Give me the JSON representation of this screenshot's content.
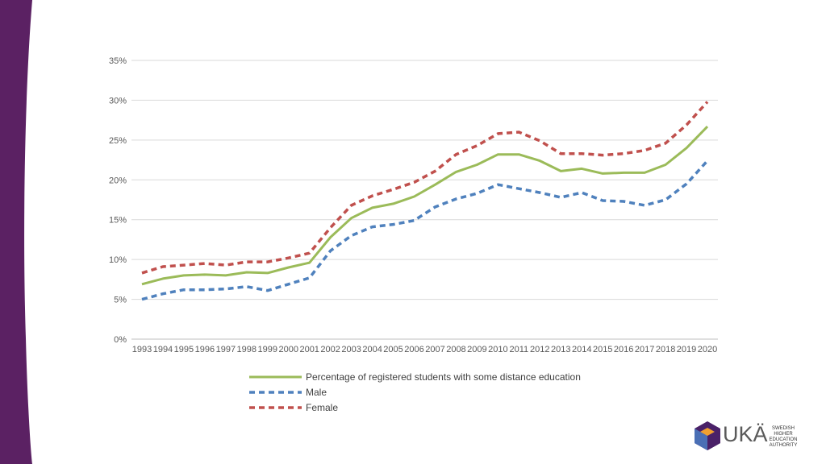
{
  "colors": {
    "band": "#5b2163",
    "total": "#9bbb59",
    "male": "#4f81bd",
    "female": "#c0504d",
    "grid": "#d9d9d9",
    "logo_dark": "#4a2168",
    "logo_orange": "#f0a030",
    "logo_blue": "#4a6fb5"
  },
  "chart_data": {
    "type": "line",
    "x": [
      "1993",
      "1994",
      "1995",
      "1996",
      "1997",
      "1998",
      "1999",
      "2000",
      "2001",
      "2002",
      "2003",
      "2004",
      "2005",
      "2006",
      "2007",
      "2008",
      "2009",
      "2010",
      "2011",
      "2012",
      "2013",
      "2014",
      "2015",
      "2016",
      "2017",
      "2018",
      "2019",
      "2020"
    ],
    "ylim": [
      0,
      35
    ],
    "yticks": [
      0,
      5,
      10,
      15,
      20,
      25,
      30,
      35
    ],
    "ytick_labels": [
      "0%",
      "5%",
      "10%",
      "15%",
      "20%",
      "25%",
      "30%",
      "35%"
    ],
    "grid": "horizontal",
    "legend_position": "bottom",
    "series": [
      {
        "name": "Percentage of registered students with some distance education",
        "style": "solid",
        "color": "#9bbb59",
        "values": [
          6.9,
          7.6,
          8.0,
          8.1,
          8.0,
          8.4,
          8.3,
          9.0,
          9.6,
          12.8,
          15.2,
          16.5,
          17.0,
          17.9,
          19.4,
          21.0,
          21.9,
          23.2,
          23.2,
          22.4,
          21.1,
          21.4,
          20.8,
          20.9,
          20.9,
          21.9,
          24.0,
          26.7
        ]
      },
      {
        "name": "Male",
        "style": "dashed",
        "color": "#4f81bd",
        "values": [
          5.0,
          5.7,
          6.2,
          6.2,
          6.3,
          6.6,
          6.1,
          6.9,
          7.7,
          11.1,
          13.0,
          14.1,
          14.4,
          14.9,
          16.6,
          17.6,
          18.3,
          19.4,
          18.9,
          18.4,
          17.8,
          18.4,
          17.4,
          17.3,
          16.8,
          17.5,
          19.5,
          22.4
        ]
      },
      {
        "name": "Female",
        "style": "dashed",
        "color": "#c0504d",
        "values": [
          8.3,
          9.1,
          9.3,
          9.5,
          9.3,
          9.7,
          9.7,
          10.2,
          10.8,
          14.0,
          16.8,
          18.0,
          18.8,
          19.7,
          21.1,
          23.2,
          24.3,
          25.8,
          26.0,
          24.9,
          23.3,
          23.3,
          23.1,
          23.3,
          23.7,
          24.6,
          26.9,
          29.8
        ]
      }
    ]
  },
  "logo": {
    "text": "UKÄ",
    "subtitle_lines": [
      "SWEDISH HIGHER",
      "EDUCATION",
      "AUTHORITY"
    ]
  }
}
